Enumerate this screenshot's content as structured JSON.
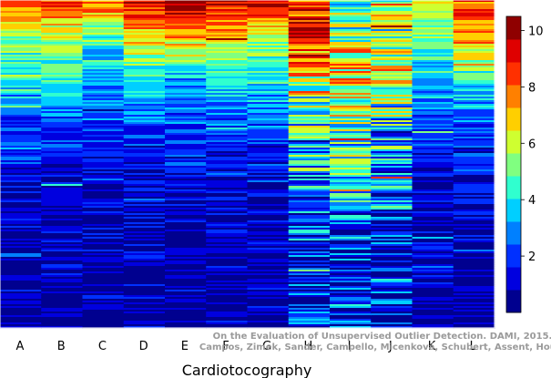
{
  "chart_data": {
    "type": "heatmap",
    "xlabel": "Cardiotocography",
    "categories": [
      "A",
      "B",
      "C",
      "D",
      "E",
      "F",
      "G",
      "H",
      "I",
      "J",
      "K",
      "L"
    ],
    "row_profiles": [
      {
        "rows": "top (first ~12%)",
        "values": [
          8.5,
          8.5,
          8,
          9.5,
          10.5,
          9.5,
          10,
          9,
          4,
          6,
          6,
          8.5
        ]
      },
      {
        "rows": "~25%",
        "values": [
          5.5,
          5.5,
          4.5,
          6.5,
          7,
          6.5,
          5.5,
          9,
          6,
          5,
          5,
          7.5
        ]
      },
      {
        "rows": "~40%",
        "values": [
          4,
          4,
          3,
          4,
          3,
          4,
          4,
          6,
          7,
          6,
          3.5,
          4
        ]
      },
      {
        "rows": "~60%",
        "values": [
          2,
          2,
          2,
          2,
          2,
          2,
          2,
          4,
          5,
          3.5,
          2,
          2
        ]
      },
      {
        "rows": "~80%",
        "values": [
          1,
          1,
          1,
          1,
          1,
          1,
          1,
          3,
          3,
          2.5,
          1,
          1
        ]
      },
      {
        "rows": "bottom",
        "values": [
          0.5,
          0.5,
          0.5,
          0.5,
          0.5,
          0.5,
          0.5,
          1.5,
          1.5,
          1,
          0.5,
          0.5
        ]
      }
    ],
    "colorbar": {
      "ticks": [
        2,
        4,
        6,
        8,
        10
      ],
      "range": [
        0,
        10.5
      ],
      "colors": [
        "#00008f",
        "#0000df",
        "#0030ff",
        "#0080ff",
        "#00cfff",
        "#30ffcf",
        "#80ff80",
        "#cfff30",
        "#ffcf00",
        "#ff8000",
        "#ff3000",
        "#df0000",
        "#8f0000"
      ]
    },
    "annotation_lines": [
      "On the Evaluation of Unsupervised Outlier Detection. DAMI, 2015.",
      "Campos, Zimek, Sander, Campello, Micenková, Schubert, Assent, Houle"
    ]
  }
}
